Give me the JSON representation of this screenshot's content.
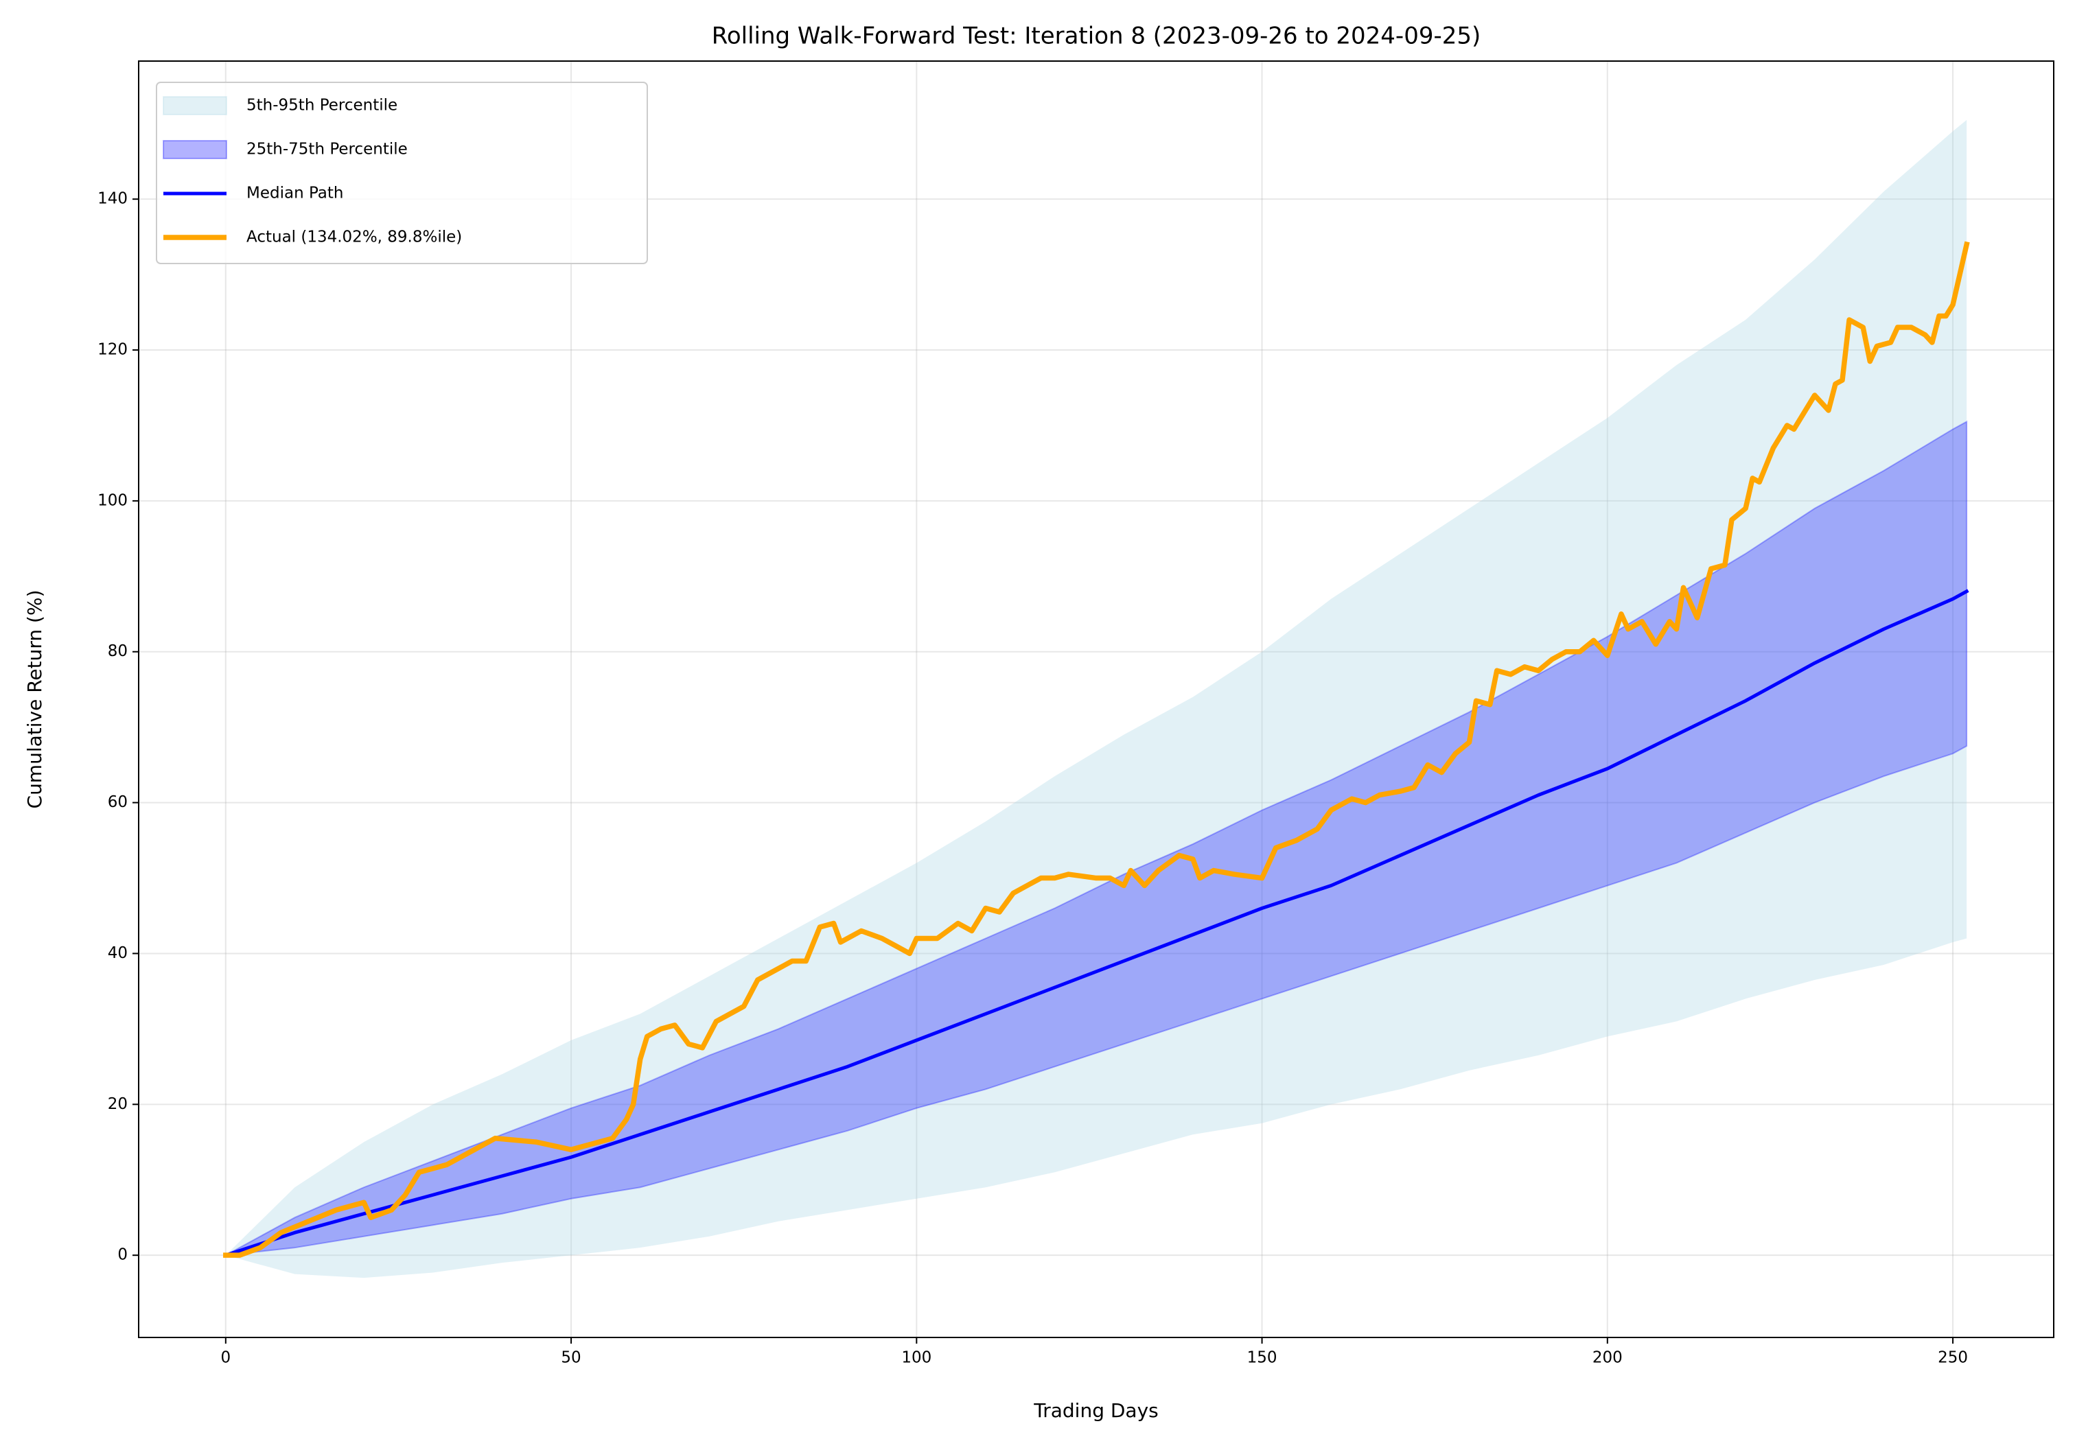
{
  "chart_data": {
    "type": "line",
    "title": "Rolling Walk-Forward Test: Iteration 8 (2023-09-26 to 2024-09-25)",
    "x_label": "Trading Days",
    "y_label": "Cumulative Return (%)",
    "xlim": [
      -12.6,
      264.6
    ],
    "ylim": [
      -10.9,
      158.3
    ],
    "xticks": [
      0,
      50,
      100,
      150,
      200,
      250
    ],
    "yticks": [
      0,
      20,
      40,
      60,
      80,
      100,
      120,
      140
    ],
    "grid": true,
    "legend": "upper left",
    "x": [
      0,
      10,
      20,
      30,
      40,
      50,
      60,
      70,
      80,
      90,
      100,
      110,
      120,
      130,
      140,
      150,
      160,
      170,
      180,
      190,
      200,
      210,
      220,
      230,
      240,
      250,
      252
    ],
    "series": [
      {
        "name": "5th-95th Percentile",
        "type": "band",
        "color": "#add8e6",
        "lower": [
          0,
          -2.5,
          -3,
          -2.3,
          -1,
          0,
          1,
          2.5,
          4.5,
          6,
          7.5,
          9,
          11,
          13.5,
          16,
          17.5,
          20,
          22,
          24.5,
          26.5,
          29,
          31,
          34,
          36.5,
          38.5,
          41.5,
          42
        ],
        "upper": [
          0,
          9,
          15,
          20,
          24,
          28.5,
          32,
          37,
          42,
          47,
          52,
          57.5,
          63.5,
          69,
          74,
          80,
          87,
          93,
          99,
          105,
          111,
          118,
          124,
          132,
          141,
          149,
          150.5
        ]
      },
      {
        "name": "25th-75th Percentile",
        "type": "band",
        "color": "#0000ff",
        "lower": [
          0,
          1,
          2.5,
          4,
          5.5,
          7.5,
          9,
          11.5,
          14,
          16.5,
          19.5,
          22,
          25,
          28,
          31,
          34,
          37,
          40,
          43,
          46,
          49,
          52,
          56,
          60,
          63.5,
          66.5,
          67.5
        ],
        "upper": [
          0,
          5,
          9,
          12.5,
          16,
          19.5,
          22.5,
          26.5,
          30,
          34,
          38,
          42,
          46,
          50.5,
          54.5,
          59,
          63,
          67.5,
          72,
          77,
          82,
          87.5,
          93,
          99,
          104,
          109.5,
          110.5
        ]
      },
      {
        "name": "Median Path",
        "color": "#0000ff",
        "values": [
          0,
          3,
          5.5,
          8,
          10.5,
          13,
          16,
          19,
          22,
          25,
          28.5,
          32,
          35.5,
          39,
          42.5,
          46,
          49,
          53,
          57,
          61,
          64.5,
          69,
          73.5,
          78.5,
          83,
          87,
          88
        ]
      },
      {
        "name": "Actual (134.02%, 89.8%ile)",
        "color": "#ffa500",
        "x": [
          0,
          2,
          5,
          8,
          12,
          16,
          20,
          21,
          24,
          26,
          28,
          32,
          36,
          39,
          45,
          50,
          52,
          56,
          58,
          59,
          60,
          61,
          63,
          65,
          67,
          69,
          71,
          75,
          77,
          80,
          82,
          84,
          86,
          88,
          89,
          92,
          95,
          97,
          99,
          100,
          103,
          106,
          108,
          110,
          112,
          114,
          116,
          118,
          120,
          122,
          126,
          128,
          130,
          131,
          133,
          135,
          138,
          140,
          141,
          143,
          146,
          150,
          152,
          155,
          158,
          160,
          163,
          165,
          167,
          170,
          172,
          174,
          176,
          178,
          180,
          181,
          183,
          184,
          186,
          188,
          190,
          192,
          194,
          196,
          198,
          200,
          202,
          203,
          205,
          207,
          209,
          210,
          211,
          213,
          215,
          217,
          218,
          220,
          221,
          222,
          224,
          226,
          227,
          230,
          232,
          233,
          234,
          235,
          237,
          238,
          239,
          241,
          242,
          244,
          246,
          247,
          248,
          249,
          250,
          251,
          252
        ],
        "values": [
          0,
          0,
          1,
          3,
          4.5,
          6,
          7,
          5,
          6,
          8,
          11,
          12,
          14,
          15.5,
          15,
          14,
          14.5,
          15.5,
          18,
          20,
          26,
          29,
          30,
          30.5,
          28,
          27.5,
          31,
          33,
          36.5,
          38,
          39,
          39,
          43.5,
          44,
          41.5,
          43,
          42,
          41,
          40,
          42,
          42,
          44,
          43,
          46,
          45.5,
          48,
          49,
          50,
          50,
          50.5,
          50,
          50,
          49,
          51,
          49,
          51,
          53,
          52.5,
          50,
          51,
          50.5,
          50,
          54,
          55,
          56.5,
          59,
          60.5,
          60,
          61,
          61.5,
          62,
          65,
          64,
          66.5,
          68,
          73.5,
          73,
          77.5,
          77,
          78,
          77.5,
          79,
          80,
          80,
          81.5,
          79.5,
          85,
          83,
          84,
          81,
          84,
          83,
          88.5,
          84.5,
          91,
          91.5,
          97.5,
          99,
          103,
          102.5,
          107,
          110,
          109.5,
          114,
          112,
          115.5,
          116,
          124,
          123,
          118.5,
          120.5,
          121,
          123,
          123,
          122,
          121,
          124.5,
          124.5,
          126,
          130,
          134
        ]
      }
    ]
  }
}
